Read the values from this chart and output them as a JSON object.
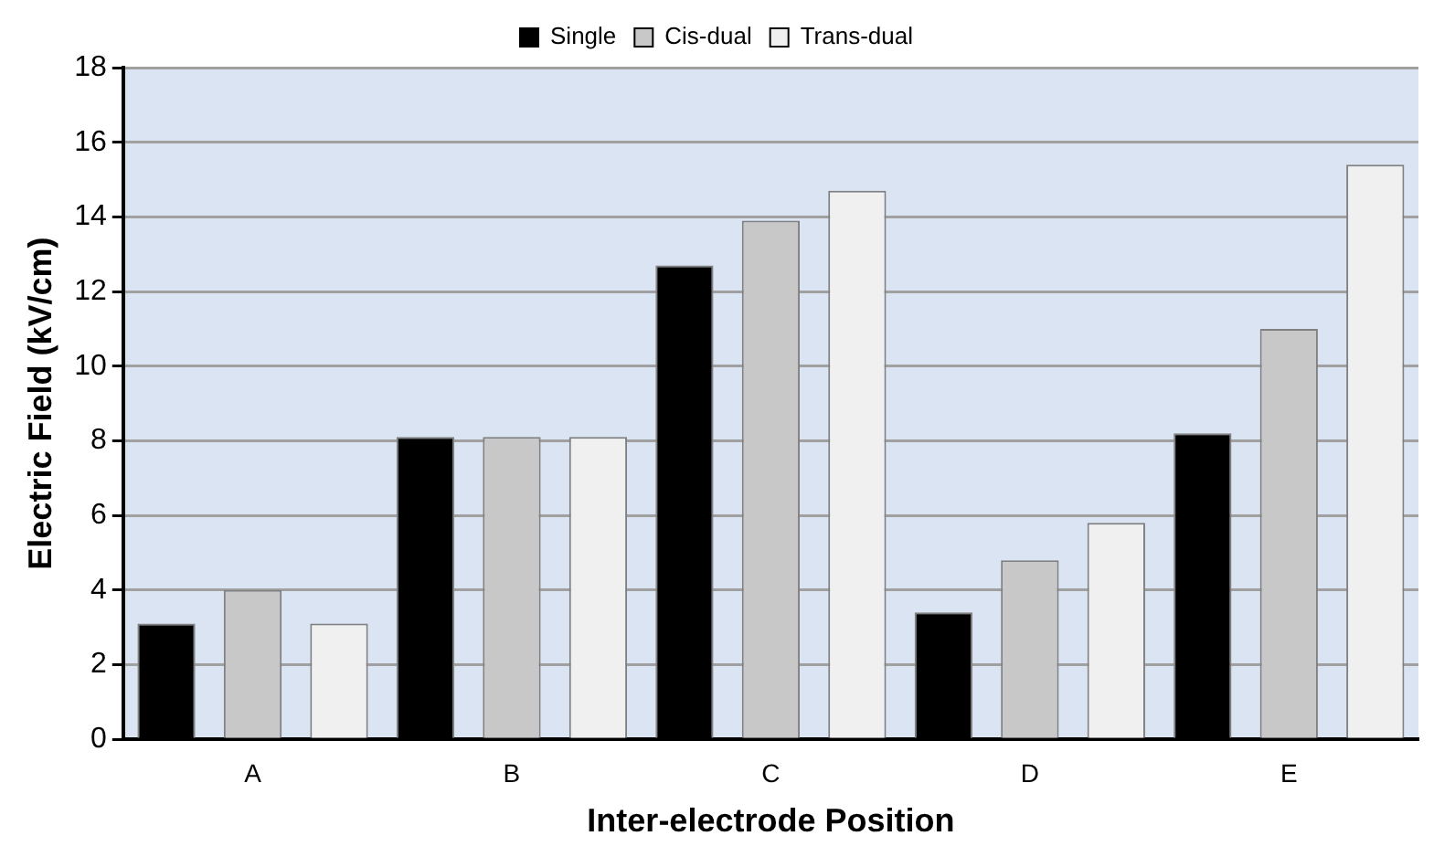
{
  "chart_data": {
    "type": "bar",
    "xlabel": "Inter-electrode Position",
    "ylabel": "Electric Field (kV/cm)",
    "categories": [
      "A",
      "B",
      "C",
      "D",
      "E"
    ],
    "series": [
      {
        "name": "Single",
        "color": "#000000",
        "values": [
          3.1,
          8.1,
          12.7,
          3.4,
          8.2
        ]
      },
      {
        "name": "Cis-dual",
        "color": "#c8c8c8",
        "values": [
          4.0,
          8.1,
          13.9,
          4.8,
          11.0
        ]
      },
      {
        "name": "Trans-dual",
        "color": "#f0f0f0",
        "values": [
          3.1,
          8.1,
          14.7,
          5.8,
          15.4
        ]
      }
    ],
    "ylim": [
      0,
      18
    ],
    "yticks": [
      0,
      2,
      4,
      6,
      8,
      10,
      12,
      14,
      16,
      18
    ],
    "grid": "y",
    "legend": "top"
  }
}
